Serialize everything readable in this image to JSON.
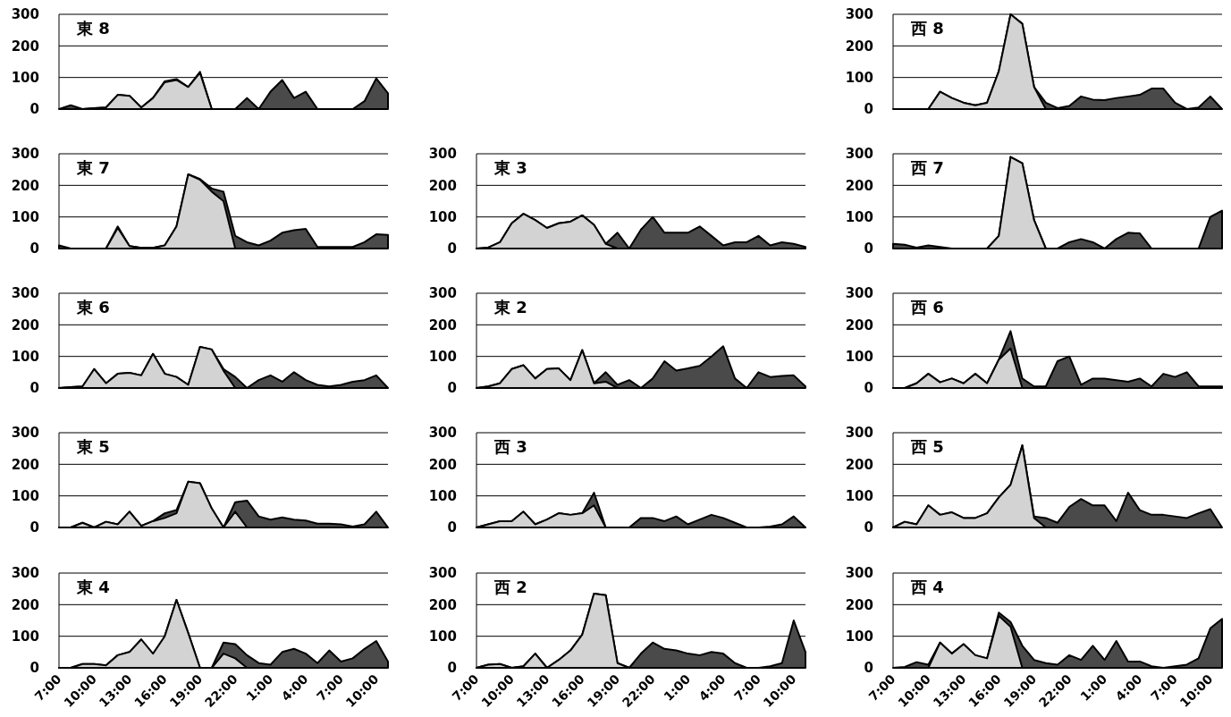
{
  "chart_data": [
    {
      "type": "area",
      "title": "東 8",
      "x": [
        "2000-01-01T07:00",
        "2000-01-01T08:00",
        "2000-01-01T09:00",
        "2000-01-01T10:00",
        "2000-01-01T11:00",
        "2000-01-01T12:00",
        "2000-01-01T13:00",
        "2000-01-01T14:00",
        "2000-01-01T15:00",
        "2000-01-01T16:00",
        "2000-01-01T17:00",
        "2000-01-01T18:00",
        "2000-01-01T19:00",
        "2000-01-01T20:00",
        "2000-01-01T21:00",
        "2000-01-01T22:00",
        "2000-01-01T23:00",
        "2000-01-02T00:00",
        "2000-01-02T01:00",
        "2000-01-02T02:00",
        "2000-01-02T03:00",
        "2000-01-02T04:00",
        "2000-01-02T05:00",
        "2000-01-02T06:00",
        "2000-01-02T07:00",
        "2000-01-02T08:00",
        "2000-01-02T09:00",
        "2000-01-02T10:00",
        "2000-01-02T11:00"
      ],
      "xlim": [
        "2000-01-01T07:00",
        "2000-01-02T11:00"
      ],
      "ylim": [
        0,
        300
      ],
      "yticks": [
        0,
        100,
        200,
        300
      ],
      "grid": "y",
      "tick_labels": "y",
      "series": [
        {
          "color": "#4a4a4a",
          "values": [
            0,
            12,
            0,
            3,
            5,
            45,
            42,
            5,
            35,
            88,
            95,
            70,
            118,
            0,
            0,
            0,
            35,
            0,
            55,
            92,
            35,
            55,
            0,
            0,
            0,
            0,
            25,
            97,
            50
          ]
        },
        {
          "color": "#d3d3d3",
          "values": [
            null,
            null,
            0,
            3,
            5,
            45,
            42,
            5,
            35,
            85,
            92,
            70,
            115,
            0,
            null,
            null,
            null,
            null,
            null,
            null,
            null,
            null,
            null,
            null,
            null,
            null,
            null,
            null,
            null
          ]
        }
      ]
    },
    {
      "type": "area",
      "title": "西 8",
      "x": [
        "2000-01-01T07:00",
        "2000-01-01T08:00",
        "2000-01-01T09:00",
        "2000-01-01T10:00",
        "2000-01-01T11:00",
        "2000-01-01T12:00",
        "2000-01-01T13:00",
        "2000-01-01T14:00",
        "2000-01-01T15:00",
        "2000-01-01T16:00",
        "2000-01-01T17:00",
        "2000-01-01T18:00",
        "2000-01-01T19:00",
        "2000-01-01T20:00",
        "2000-01-01T21:00",
        "2000-01-01T22:00",
        "2000-01-01T23:00",
        "2000-01-02T00:00",
        "2000-01-02T01:00",
        "2000-01-02T02:00",
        "2000-01-02T03:00",
        "2000-01-02T04:00",
        "2000-01-02T05:00",
        "2000-01-02T06:00",
        "2000-01-02T07:00",
        "2000-01-02T08:00",
        "2000-01-02T09:00",
        "2000-01-02T10:00",
        "2000-01-02T11:00"
      ],
      "xlim": [
        "2000-01-01T07:00",
        "2000-01-02T11:00"
      ],
      "ylim": [
        0,
        300
      ],
      "yticks": [
        0,
        100,
        200,
        300
      ],
      "grid": "y",
      "tick_labels": "y",
      "series": [
        {
          "color": "#4a4a4a",
          "values": [
            0,
            0,
            0,
            0,
            55,
            35,
            20,
            12,
            20,
            120,
            300,
            270,
            70,
            20,
            3,
            10,
            40,
            30,
            28,
            35,
            40,
            45,
            65,
            65,
            20,
            0,
            5,
            40,
            0
          ]
        },
        {
          "color": "#d3d3d3",
          "values": [
            null,
            null,
            null,
            0,
            55,
            35,
            20,
            12,
            20,
            120,
            300,
            270,
            70,
            0,
            null,
            null,
            null,
            null,
            null,
            null,
            null,
            null,
            null,
            null,
            null,
            null,
            null,
            null,
            null
          ]
        }
      ]
    },
    {
      "type": "area",
      "title": "東 7",
      "x": [
        "2000-01-01T07:00",
        "2000-01-01T08:00",
        "2000-01-01T09:00",
        "2000-01-01T10:00",
        "2000-01-01T11:00",
        "2000-01-01T12:00",
        "2000-01-01T13:00",
        "2000-01-01T14:00",
        "2000-01-01T15:00",
        "2000-01-01T16:00",
        "2000-01-01T17:00",
        "2000-01-01T18:00",
        "2000-01-01T19:00",
        "2000-01-01T20:00",
        "2000-01-01T21:00",
        "2000-01-01T22:00",
        "2000-01-01T23:00",
        "2000-01-02T00:00",
        "2000-01-02T01:00",
        "2000-01-02T02:00",
        "2000-01-02T03:00",
        "2000-01-02T04:00",
        "2000-01-02T05:00",
        "2000-01-02T06:00",
        "2000-01-02T07:00",
        "2000-01-02T08:00",
        "2000-01-02T09:00",
        "2000-01-02T10:00",
        "2000-01-02T11:00"
      ],
      "xlim": [
        "2000-01-01T07:00",
        "2000-01-02T11:00"
      ],
      "ylim": [
        0,
        300
      ],
      "yticks": [
        0,
        100,
        200,
        300
      ],
      "grid": "y",
      "tick_labels": "y",
      "series": [
        {
          "color": "#4a4a4a",
          "values": [
            10,
            0,
            0,
            0,
            0,
            70,
            8,
            2,
            2,
            10,
            70,
            235,
            220,
            190,
            180,
            40,
            20,
            10,
            25,
            50,
            58,
            62,
            5,
            5,
            5,
            5,
            20,
            45,
            43
          ]
        },
        {
          "color": "#d3d3d3",
          "values": [
            null,
            null,
            null,
            null,
            0,
            65,
            8,
            2,
            2,
            10,
            70,
            235,
            218,
            180,
            150,
            0,
            null,
            null,
            null,
            null,
            null,
            null,
            null,
            null,
            null,
            null,
            null,
            null,
            null
          ]
        }
      ]
    },
    {
      "type": "area",
      "title": "東 3",
      "x": [
        "2000-01-01T07:00",
        "2000-01-01T08:00",
        "2000-01-01T09:00",
        "2000-01-01T10:00",
        "2000-01-01T11:00",
        "2000-01-01T12:00",
        "2000-01-01T13:00",
        "2000-01-01T14:00",
        "2000-01-01T15:00",
        "2000-01-01T16:00",
        "2000-01-01T17:00",
        "2000-01-01T18:00",
        "2000-01-01T19:00",
        "2000-01-01T20:00",
        "2000-01-01T21:00",
        "2000-01-01T22:00",
        "2000-01-01T23:00",
        "2000-01-02T00:00",
        "2000-01-02T01:00",
        "2000-01-02T02:00",
        "2000-01-02T03:00",
        "2000-01-02T04:00",
        "2000-01-02T05:00",
        "2000-01-02T06:00",
        "2000-01-02T07:00",
        "2000-01-02T08:00",
        "2000-01-02T09:00",
        "2000-01-02T10:00",
        "2000-01-02T11:00"
      ],
      "xlim": [
        "2000-01-01T07:00",
        "2000-01-02T11:00"
      ],
      "ylim": [
        0,
        300
      ],
      "yticks": [
        0,
        100,
        200,
        300
      ],
      "grid": "y",
      "tick_labels": "y",
      "series": [
        {
          "color": "#4a4a4a",
          "values": [
            0,
            3,
            20,
            80,
            110,
            90,
            65,
            80,
            85,
            105,
            75,
            15,
            50,
            0,
            60,
            100,
            50,
            50,
            50,
            70,
            40,
            10,
            20,
            20,
            40,
            10,
            20,
            15,
            5
          ]
        },
        {
          "color": "#d3d3d3",
          "values": [
            0,
            3,
            20,
            80,
            110,
            90,
            65,
            80,
            85,
            105,
            75,
            15,
            0,
            null,
            null,
            null,
            null,
            null,
            null,
            null,
            null,
            null,
            null,
            null,
            null,
            null,
            null,
            null,
            null
          ]
        }
      ]
    },
    {
      "type": "area",
      "title": "西 7",
      "x": [
        "2000-01-01T07:00",
        "2000-01-01T08:00",
        "2000-01-01T09:00",
        "2000-01-01T10:00",
        "2000-01-01T11:00",
        "2000-01-01T12:00",
        "2000-01-01T13:00",
        "2000-01-01T14:00",
        "2000-01-01T15:00",
        "2000-01-01T16:00",
        "2000-01-01T17:00",
        "2000-01-01T18:00",
        "2000-01-01T19:00",
        "2000-01-01T20:00",
        "2000-01-01T21:00",
        "2000-01-01T22:00",
        "2000-01-01T23:00",
        "2000-01-02T00:00",
        "2000-01-02T01:00",
        "2000-01-02T02:00",
        "2000-01-02T03:00",
        "2000-01-02T04:00",
        "2000-01-02T05:00",
        "2000-01-02T06:00",
        "2000-01-02T07:00",
        "2000-01-02T08:00",
        "2000-01-02T09:00",
        "2000-01-02T10:00",
        "2000-01-02T11:00"
      ],
      "xlim": [
        "2000-01-01T07:00",
        "2000-01-02T11:00"
      ],
      "ylim": [
        0,
        300
      ],
      "yticks": [
        0,
        100,
        200,
        300
      ],
      "grid": "y",
      "tick_labels": "y",
      "series": [
        {
          "color": "#4a4a4a",
          "values": [
            15,
            12,
            3,
            10,
            5,
            0,
            0,
            0,
            0,
            40,
            290,
            270,
            90,
            0,
            0,
            20,
            30,
            20,
            0,
            30,
            50,
            48,
            0,
            0,
            0,
            0,
            0,
            100,
            120
          ]
        },
        {
          "color": "#d3d3d3",
          "values": [
            null,
            null,
            null,
            null,
            null,
            null,
            null,
            null,
            0,
            40,
            290,
            270,
            90,
            0,
            null,
            null,
            null,
            null,
            null,
            null,
            null,
            null,
            null,
            null,
            null,
            null,
            null,
            null,
            null
          ]
        }
      ]
    },
    {
      "type": "area",
      "title": "東 6",
      "x": [
        "2000-01-01T07:00",
        "2000-01-01T08:00",
        "2000-01-01T09:00",
        "2000-01-01T10:00",
        "2000-01-01T11:00",
        "2000-01-01T12:00",
        "2000-01-01T13:00",
        "2000-01-01T14:00",
        "2000-01-01T15:00",
        "2000-01-01T16:00",
        "2000-01-01T17:00",
        "2000-01-01T18:00",
        "2000-01-01T19:00",
        "2000-01-01T20:00",
        "2000-01-01T21:00",
        "2000-01-01T22:00",
        "2000-01-01T23:00",
        "2000-01-02T00:00",
        "2000-01-02T01:00",
        "2000-01-02T02:00",
        "2000-01-02T03:00",
        "2000-01-02T04:00",
        "2000-01-02T05:00",
        "2000-01-02T06:00",
        "2000-01-02T07:00",
        "2000-01-02T08:00",
        "2000-01-02T09:00",
        "2000-01-02T10:00",
        "2000-01-02T11:00"
      ],
      "xlim": [
        "2000-01-01T07:00",
        "2000-01-02T11:00"
      ],
      "ylim": [
        0,
        300
      ],
      "yticks": [
        0,
        100,
        200,
        300
      ],
      "grid": "y",
      "tick_labels": "y",
      "series": [
        {
          "color": "#4a4a4a",
          "values": [
            0,
            3,
            5,
            60,
            15,
            45,
            48,
            40,
            108,
            45,
            35,
            10,
            130,
            122,
            60,
            35,
            0,
            25,
            40,
            20,
            50,
            25,
            10,
            5,
            10,
            20,
            25,
            40,
            0
          ]
        },
        {
          "color": "#d3d3d3",
          "values": [
            0,
            3,
            5,
            60,
            15,
            45,
            48,
            40,
            108,
            45,
            35,
            10,
            130,
            122,
            55,
            0,
            null,
            null,
            null,
            null,
            null,
            null,
            null,
            null,
            null,
            null,
            null,
            null,
            null
          ]
        }
      ]
    },
    {
      "type": "area",
      "title": "東 2",
      "x": [
        "2000-01-01T07:00",
        "2000-01-01T08:00",
        "2000-01-01T09:00",
        "2000-01-01T10:00",
        "2000-01-01T11:00",
        "2000-01-01T12:00",
        "2000-01-01T13:00",
        "2000-01-01T14:00",
        "2000-01-01T15:00",
        "2000-01-01T16:00",
        "2000-01-01T17:00",
        "2000-01-01T18:00",
        "2000-01-01T19:00",
        "2000-01-01T20:00",
        "2000-01-01T21:00",
        "2000-01-01T22:00",
        "2000-01-01T23:00",
        "2000-01-02T00:00",
        "2000-01-02T01:00",
        "2000-01-02T02:00",
        "2000-01-02T03:00",
        "2000-01-02T04:00",
        "2000-01-02T05:00",
        "2000-01-02T06:00",
        "2000-01-02T07:00",
        "2000-01-02T08:00",
        "2000-01-02T09:00",
        "2000-01-02T10:00",
        "2000-01-02T11:00"
      ],
      "xlim": [
        "2000-01-01T07:00",
        "2000-01-02T11:00"
      ],
      "ylim": [
        0,
        300
      ],
      "yticks": [
        0,
        100,
        200,
        300
      ],
      "grid": "y",
      "tick_labels": "y",
      "series": [
        {
          "color": "#4a4a4a",
          "values": [
            0,
            5,
            15,
            60,
            72,
            30,
            60,
            62,
            25,
            120,
            15,
            50,
            10,
            25,
            0,
            30,
            85,
            55,
            62,
            70,
            100,
            132,
            30,
            0,
            50,
            35,
            38,
            40,
            5
          ]
        },
        {
          "color": "#d3d3d3",
          "values": [
            0,
            5,
            15,
            60,
            72,
            30,
            60,
            62,
            25,
            120,
            15,
            20,
            0,
            null,
            null,
            null,
            null,
            null,
            null,
            null,
            null,
            null,
            null,
            null,
            null,
            null,
            null,
            null,
            null
          ]
        }
      ]
    },
    {
      "type": "area",
      "title": "西 6",
      "x": [
        "2000-01-01T07:00",
        "2000-01-01T08:00",
        "2000-01-01T09:00",
        "2000-01-01T10:00",
        "2000-01-01T11:00",
        "2000-01-01T12:00",
        "2000-01-01T13:00",
        "2000-01-01T14:00",
        "2000-01-01T15:00",
        "2000-01-01T16:00",
        "2000-01-01T17:00",
        "2000-01-01T18:00",
        "2000-01-01T19:00",
        "2000-01-01T20:00",
        "2000-01-01T21:00",
        "2000-01-01T22:00",
        "2000-01-01T23:00",
        "2000-01-02T00:00",
        "2000-01-02T01:00",
        "2000-01-02T02:00",
        "2000-01-02T03:00",
        "2000-01-02T04:00",
        "2000-01-02T05:00",
        "2000-01-02T06:00",
        "2000-01-02T07:00",
        "2000-01-02T08:00",
        "2000-01-02T09:00",
        "2000-01-02T10:00",
        "2000-01-02T11:00"
      ],
      "xlim": [
        "2000-01-01T07:00",
        "2000-01-02T11:00"
      ],
      "ylim": [
        0,
        300
      ],
      "yticks": [
        0,
        100,
        200,
        300
      ],
      "grid": "y",
      "tick_labels": "y",
      "series": [
        {
          "color": "#4a4a4a",
          "values": [
            0,
            0,
            15,
            45,
            18,
            30,
            15,
            45,
            15,
            90,
            180,
            30,
            5,
            5,
            85,
            100,
            10,
            30,
            30,
            25,
            20,
            30,
            5,
            45,
            35,
            50,
            5,
            5,
            5
          ]
        },
        {
          "color": "#d3d3d3",
          "values": [
            0,
            0,
            15,
            45,
            18,
            30,
            15,
            45,
            15,
            90,
            125,
            0,
            null,
            null,
            null,
            null,
            null,
            null,
            null,
            null,
            null,
            null,
            null,
            null,
            null,
            null,
            null,
            null,
            null
          ]
        }
      ]
    },
    {
      "type": "area",
      "title": "東 5",
      "x": [
        "2000-01-01T07:00",
        "2000-01-01T08:00",
        "2000-01-01T09:00",
        "2000-01-01T10:00",
        "2000-01-01T11:00",
        "2000-01-01T12:00",
        "2000-01-01T13:00",
        "2000-01-01T14:00",
        "2000-01-01T15:00",
        "2000-01-01T16:00",
        "2000-01-01T17:00",
        "2000-01-01T18:00",
        "2000-01-01T19:00",
        "2000-01-01T20:00",
        "2000-01-01T21:00",
        "2000-01-01T22:00",
        "2000-01-01T23:00",
        "2000-01-02T00:00",
        "2000-01-02T01:00",
        "2000-01-02T02:00",
        "2000-01-02T03:00",
        "2000-01-02T04:00",
        "2000-01-02T05:00",
        "2000-01-02T06:00",
        "2000-01-02T07:00",
        "2000-01-02T08:00",
        "2000-01-02T09:00",
        "2000-01-02T10:00",
        "2000-01-02T11:00"
      ],
      "xlim": [
        "2000-01-01T07:00",
        "2000-01-02T11:00"
      ],
      "ylim": [
        0,
        300
      ],
      "yticks": [
        0,
        100,
        200,
        300
      ],
      "grid": "y",
      "tick_labels": "y",
      "series": [
        {
          "color": "#4a4a4a",
          "values": [
            0,
            0,
            15,
            0,
            18,
            10,
            50,
            5,
            20,
            45,
            55,
            145,
            140,
            60,
            0,
            80,
            85,
            35,
            25,
            32,
            25,
            22,
            12,
            12,
            10,
            3,
            10,
            50,
            0
          ]
        },
        {
          "color": "#d3d3d3",
          "values": [
            0,
            0,
            15,
            0,
            18,
            10,
            50,
            5,
            20,
            30,
            45,
            145,
            140,
            60,
            0,
            50,
            0,
            null,
            null,
            null,
            null,
            null,
            null,
            null,
            null,
            null,
            null,
            null,
            null
          ]
        }
      ]
    },
    {
      "type": "area",
      "title": "西 3",
      "x": [
        "2000-01-01T07:00",
        "2000-01-01T08:00",
        "2000-01-01T09:00",
        "2000-01-01T10:00",
        "2000-01-01T11:00",
        "2000-01-01T12:00",
        "2000-01-01T13:00",
        "2000-01-01T14:00",
        "2000-01-01T15:00",
        "2000-01-01T16:00",
        "2000-01-01T17:00",
        "2000-01-01T18:00",
        "2000-01-01T19:00",
        "2000-01-01T20:00",
        "2000-01-01T21:00",
        "2000-01-01T22:00",
        "2000-01-01T23:00",
        "2000-01-02T00:00",
        "2000-01-02T01:00",
        "2000-01-02T02:00",
        "2000-01-02T03:00",
        "2000-01-02T04:00",
        "2000-01-02T05:00",
        "2000-01-02T06:00",
        "2000-01-02T07:00",
        "2000-01-02T08:00",
        "2000-01-02T09:00",
        "2000-01-02T10:00",
        "2000-01-02T11:00"
      ],
      "xlim": [
        "2000-01-01T07:00",
        "2000-01-02T11:00"
      ],
      "ylim": [
        0,
        300
      ],
      "yticks": [
        0,
        100,
        200,
        300
      ],
      "grid": "y",
      "tick_labels": "y",
      "series": [
        {
          "color": "#4a4a4a",
          "values": [
            0,
            10,
            20,
            20,
            50,
            10,
            25,
            45,
            40,
            45,
            110,
            0,
            0,
            0,
            30,
            30,
            20,
            35,
            10,
            25,
            40,
            30,
            15,
            0,
            0,
            3,
            10,
            35,
            0
          ]
        },
        {
          "color": "#d3d3d3",
          "values": [
            0,
            10,
            20,
            20,
            50,
            10,
            25,
            45,
            40,
            45,
            70,
            0,
            null,
            null,
            null,
            null,
            null,
            null,
            null,
            null,
            null,
            null,
            null,
            null,
            null,
            null,
            null,
            null,
            null
          ]
        }
      ]
    },
    {
      "type": "area",
      "title": "西 5",
      "x": [
        "2000-01-01T07:00",
        "2000-01-01T08:00",
        "2000-01-01T09:00",
        "2000-01-01T10:00",
        "2000-01-01T11:00",
        "2000-01-01T12:00",
        "2000-01-01T13:00",
        "2000-01-01T14:00",
        "2000-01-01T15:00",
        "2000-01-01T16:00",
        "2000-01-01T17:00",
        "2000-01-01T18:00",
        "2000-01-01T19:00",
        "2000-01-01T20:00",
        "2000-01-01T21:00",
        "2000-01-01T22:00",
        "2000-01-01T23:00",
        "2000-01-02T00:00",
        "2000-01-02T01:00",
        "2000-01-02T02:00",
        "2000-01-02T03:00",
        "2000-01-02T04:00",
        "2000-01-02T05:00",
        "2000-01-02T06:00",
        "2000-01-02T07:00",
        "2000-01-02T08:00",
        "2000-01-02T09:00",
        "2000-01-02T10:00",
        "2000-01-02T11:00"
      ],
      "xlim": [
        "2000-01-01T07:00",
        "2000-01-02T11:00"
      ],
      "ylim": [
        0,
        300
      ],
      "yticks": [
        0,
        100,
        200,
        300
      ],
      "grid": "y",
      "tick_labels": "y",
      "series": [
        {
          "color": "#4a4a4a",
          "values": [
            0,
            18,
            10,
            70,
            40,
            48,
            30,
            30,
            45,
            95,
            135,
            260,
            35,
            30,
            15,
            65,
            90,
            70,
            70,
            20,
            110,
            55,
            40,
            40,
            35,
            30,
            45,
            58,
            0
          ]
        },
        {
          "color": "#d3d3d3",
          "values": [
            0,
            18,
            10,
            70,
            40,
            48,
            30,
            30,
            45,
            95,
            135,
            260,
            30,
            0,
            null,
            null,
            null,
            null,
            null,
            null,
            null,
            null,
            null,
            null,
            null,
            null,
            null,
            null,
            null
          ]
        }
      ]
    },
    {
      "type": "area",
      "title": "東 4",
      "x": [
        "2000-01-01T07:00",
        "2000-01-01T08:00",
        "2000-01-01T09:00",
        "2000-01-01T10:00",
        "2000-01-01T11:00",
        "2000-01-01T12:00",
        "2000-01-01T13:00",
        "2000-01-01T14:00",
        "2000-01-01T15:00",
        "2000-01-01T16:00",
        "2000-01-01T17:00",
        "2000-01-01T18:00",
        "2000-01-01T19:00",
        "2000-01-01T20:00",
        "2000-01-01T21:00",
        "2000-01-01T22:00",
        "2000-01-01T23:00",
        "2000-01-02T00:00",
        "2000-01-02T01:00",
        "2000-01-02T02:00",
        "2000-01-02T03:00",
        "2000-01-02T04:00",
        "2000-01-02T05:00",
        "2000-01-02T06:00",
        "2000-01-02T07:00",
        "2000-01-02T08:00",
        "2000-01-02T09:00",
        "2000-01-02T10:00",
        "2000-01-02T11:00"
      ],
      "xlim": [
        "2000-01-01T07:00",
        "2000-01-02T11:00"
      ],
      "xticks": [
        {
          "value": "2000-01-01T07:00",
          "label": "7:00"
        },
        {
          "value": "2000-01-01T10:00",
          "label": "10:00"
        },
        {
          "value": "2000-01-01T13:00",
          "label": "13:00"
        },
        {
          "value": "2000-01-01T16:00",
          "label": "16:00"
        },
        {
          "value": "2000-01-01T19:00",
          "label": "19:00"
        },
        {
          "value": "2000-01-01T22:00",
          "label": "22:00"
        },
        {
          "value": "2000-01-02T01:00",
          "label": "1:00"
        },
        {
          "value": "2000-01-02T04:00",
          "label": "4:00"
        },
        {
          "value": "2000-01-02T07:00",
          "label": "7:00"
        },
        {
          "value": "2000-01-02T10:00",
          "label": "10:00"
        }
      ],
      "ylim": [
        0,
        300
      ],
      "yticks": [
        0,
        100,
        200,
        300
      ],
      "grid": "y",
      "series": [
        {
          "color": "#4a4a4a",
          "values": [
            0,
            0,
            12,
            12,
            8,
            40,
            50,
            90,
            null,
            100,
            215,
            110,
            0,
            0,
            80,
            75,
            40,
            15,
            10,
            50,
            60,
            45,
            15,
            55,
            20,
            30,
            60,
            85,
            20
          ]
        },
        {
          "color": "#d3d3d3",
          "values": [
            0,
            0,
            12,
            12,
            8,
            40,
            50,
            90,
            45,
            100,
            215,
            110,
            0,
            0,
            45,
            30,
            0,
            null,
            null,
            null,
            null,
            null,
            null,
            null,
            null,
            null,
            null,
            null,
            null
          ]
        }
      ]
    },
    {
      "type": "area",
      "title": "西 2",
      "x": [
        "2000-01-01T07:00",
        "2000-01-01T08:00",
        "2000-01-01T09:00",
        "2000-01-01T10:00",
        "2000-01-01T11:00",
        "2000-01-01T12:00",
        "2000-01-01T13:00",
        "2000-01-01T14:00",
        "2000-01-01T15:00",
        "2000-01-01T16:00",
        "2000-01-01T17:00",
        "2000-01-01T18:00",
        "2000-01-01T19:00",
        "2000-01-01T20:00",
        "2000-01-01T21:00",
        "2000-01-01T22:00",
        "2000-01-01T23:00",
        "2000-01-02T00:00",
        "2000-01-02T01:00",
        "2000-01-02T02:00",
        "2000-01-02T03:00",
        "2000-01-02T04:00",
        "2000-01-02T05:00",
        "2000-01-02T06:00",
        "2000-01-02T07:00",
        "2000-01-02T08:00",
        "2000-01-02T09:00",
        "2000-01-02T10:00",
        "2000-01-02T11:00"
      ],
      "xlim": [
        "2000-01-01T07:00",
        "2000-01-02T11:00"
      ],
      "xticks": [
        {
          "value": "2000-01-01T07:00",
          "label": "7:00"
        },
        {
          "value": "2000-01-01T10:00",
          "label": "10:00"
        },
        {
          "value": "2000-01-01T13:00",
          "label": "13:00"
        },
        {
          "value": "2000-01-01T16:00",
          "label": "16:00"
        },
        {
          "value": "2000-01-01T19:00",
          "label": "19:00"
        },
        {
          "value": "2000-01-01T22:00",
          "label": "22:00"
        },
        {
          "value": "2000-01-02T01:00",
          "label": "1:00"
        },
        {
          "value": "2000-01-02T04:00",
          "label": "4:00"
        },
        {
          "value": "2000-01-02T07:00",
          "label": "7:00"
        },
        {
          "value": "2000-01-02T10:00",
          "label": "10:00"
        }
      ],
      "ylim": [
        0,
        300
      ],
      "yticks": [
        0,
        100,
        200,
        300
      ],
      "grid": "y",
      "series": [
        {
          "color": "#4a4a4a",
          "values": [
            0,
            10,
            12,
            0,
            5,
            45,
            0,
            25,
            55,
            105,
            235,
            230,
            15,
            0,
            45,
            80,
            60,
            55,
            45,
            40,
            50,
            45,
            15,
            0,
            0,
            5,
            15,
            150,
            50
          ]
        },
        {
          "color": "#d3d3d3",
          "values": [
            0,
            10,
            12,
            0,
            5,
            45,
            0,
            25,
            55,
            105,
            235,
            230,
            15,
            0,
            null,
            null,
            null,
            null,
            null,
            null,
            null,
            null,
            null,
            null,
            null,
            null,
            null,
            null,
            null
          ]
        }
      ]
    },
    {
      "type": "area",
      "title": "西 4",
      "x": [
        "2000-01-01T07:00",
        "2000-01-01T08:00",
        "2000-01-01T09:00",
        "2000-01-01T10:00",
        "2000-01-01T11:00",
        "2000-01-01T12:00",
        "2000-01-01T13:00",
        "2000-01-01T14:00",
        "2000-01-01T15:00",
        "2000-01-01T16:00",
        "2000-01-01T17:00",
        "2000-01-01T18:00",
        "2000-01-01T19:00",
        "2000-01-01T20:00",
        "2000-01-01T21:00",
        "2000-01-01T22:00",
        "2000-01-01T23:00",
        "2000-01-02T00:00",
        "2000-01-02T01:00",
        "2000-01-02T02:00",
        "2000-01-02T03:00",
        "2000-01-02T04:00",
        "2000-01-02T05:00",
        "2000-01-02T06:00",
        "2000-01-02T07:00",
        "2000-01-02T08:00",
        "2000-01-02T09:00",
        "2000-01-02T10:00",
        "2000-01-02T11:00"
      ],
      "xlim": [
        "2000-01-01T07:00",
        "2000-01-02T11:00"
      ],
      "xticks": [
        {
          "value": "2000-01-01T07:00",
          "label": "7:00"
        },
        {
          "value": "2000-01-01T10:00",
          "label": "10:00"
        },
        {
          "value": "2000-01-01T13:00",
          "label": "13:00"
        },
        {
          "value": "2000-01-01T16:00",
          "label": "16:00"
        },
        {
          "value": "2000-01-01T19:00",
          "label": "19:00"
        },
        {
          "value": "2000-01-01T22:00",
          "label": "22:00"
        },
        {
          "value": "2000-01-02T01:00",
          "label": "1:00"
        },
        {
          "value": "2000-01-02T04:00",
          "label": "4:00"
        },
        {
          "value": "2000-01-02T07:00",
          "label": "7:00"
        },
        {
          "value": "2000-01-02T10:00",
          "label": "10:00"
        }
      ],
      "ylim": [
        0,
        300
      ],
      "yticks": [
        0,
        100,
        200,
        300
      ],
      "grid": "y",
      "series": [
        {
          "color": "#4a4a4a",
          "values": [
            0,
            3,
            18,
            10,
            80,
            45,
            75,
            40,
            30,
            175,
            145,
            70,
            25,
            15,
            10,
            40,
            25,
            70,
            25,
            85,
            20,
            20,
            5,
            0,
            5,
            10,
            30,
            125,
            155
          ]
        },
        {
          "color": "#d3d3d3",
          "values": [
            null,
            null,
            null,
            0,
            80,
            45,
            75,
            40,
            30,
            165,
            130,
            0,
            null,
            null,
            null,
            null,
            null,
            null,
            null,
            null,
            null,
            null,
            null,
            null,
            null,
            null,
            null,
            null,
            null
          ]
        }
      ]
    }
  ]
}
